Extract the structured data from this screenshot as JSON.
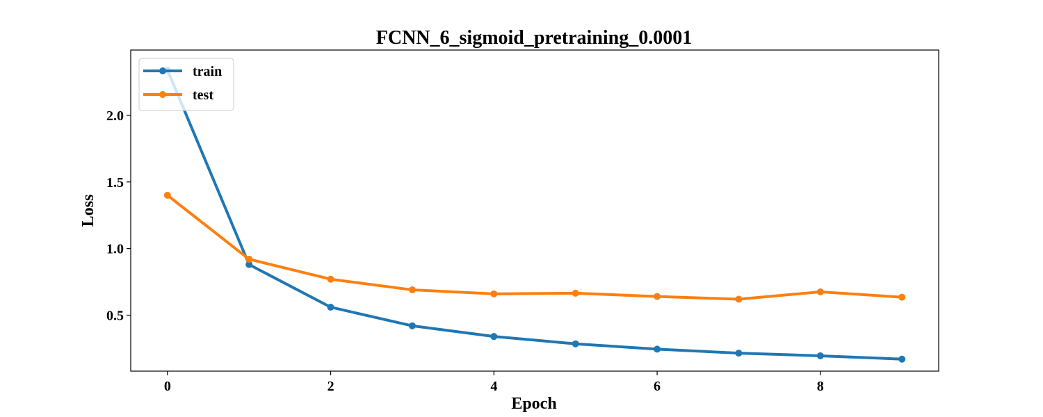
{
  "chart_data": {
    "type": "line",
    "title": "FCNN_6_sigmoid_pretraining_0.0001",
    "xlabel": "Epoch",
    "ylabel": "Loss",
    "x": [
      0,
      1,
      2,
      3,
      4,
      5,
      6,
      7,
      8,
      9
    ],
    "xlim": [
      -0.45,
      9.45
    ],
    "ylim": [
      0.08,
      2.49
    ],
    "xticks": [
      0,
      2,
      4,
      6,
      8
    ],
    "yticks": [
      0.5,
      1.0,
      1.5,
      2.0
    ],
    "xtick_labels": [
      "0",
      "2",
      "4",
      "6",
      "8"
    ],
    "ytick_labels": [
      "0.5",
      "1.0",
      "1.5",
      "2.0"
    ],
    "grid": false,
    "legend": "upper-left",
    "series": [
      {
        "name": "train",
        "color": "#1f77b4",
        "marker": "circle",
        "values": [
          2.34,
          0.88,
          0.56,
          0.42,
          0.34,
          0.285,
          0.245,
          0.215,
          0.195,
          0.17
        ]
      },
      {
        "name": "test",
        "color": "#ff7f0e",
        "marker": "circle",
        "values": [
          1.4,
          0.92,
          0.77,
          0.69,
          0.66,
          0.665,
          0.64,
          0.62,
          0.675,
          0.635
        ]
      }
    ]
  }
}
